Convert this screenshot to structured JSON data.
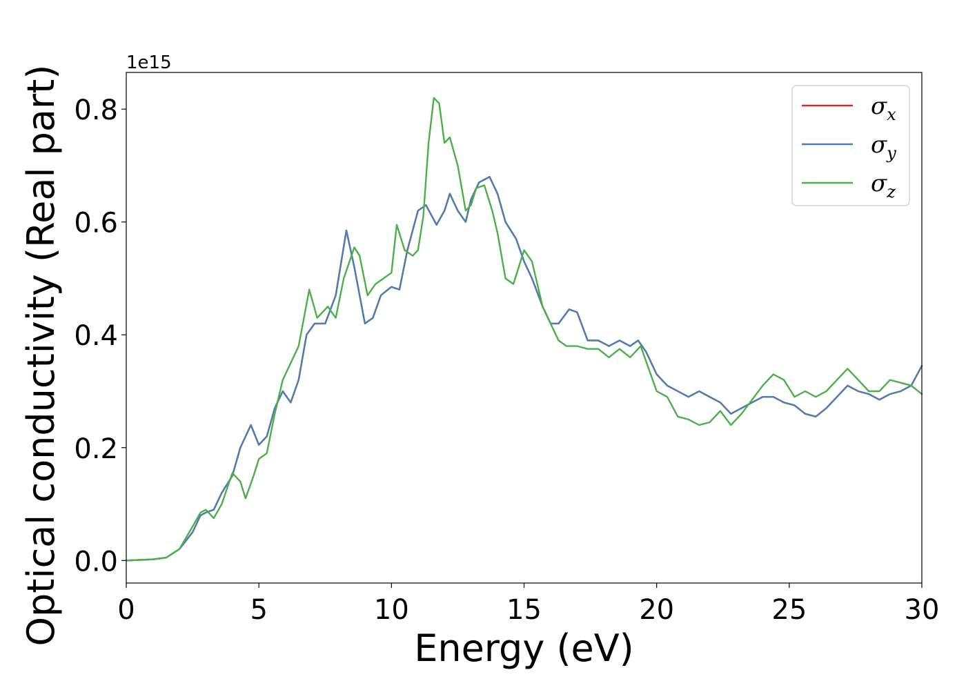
{
  "chart_data": {
    "type": "line",
    "xlabel": "Energy (eV)",
    "ylabel": "Optical conductivity (Real part)",
    "y_offset_label": "1e15",
    "xlim": [
      0,
      30
    ],
    "ylim": [
      -0.04,
      0.865
    ],
    "x_ticks": [
      0,
      5,
      10,
      15,
      20,
      25,
      30
    ],
    "y_ticks": [
      0.0,
      0.2,
      0.4,
      0.6,
      0.8
    ],
    "x_tick_labels": [
      "0",
      "5",
      "10",
      "15",
      "20",
      "25",
      "30"
    ],
    "y_tick_labels": [
      "0.0",
      "0.2",
      "0.4",
      "0.6",
      "0.8"
    ],
    "grid": false,
    "legend_position": "top-right",
    "series": [
      {
        "name": "σx",
        "symbol": "σ",
        "subscript": "x",
        "color": "#d62728",
        "points": [
          [
            0,
            0
          ],
          [
            1,
            0.002
          ],
          [
            1.5,
            0.005
          ],
          [
            2,
            0.02
          ],
          [
            2.5,
            0.05
          ],
          [
            2.8,
            0.08
          ],
          [
            3,
            0.085
          ],
          [
            3.3,
            0.09
          ],
          [
            3.6,
            0.12
          ],
          [
            4,
            0.15
          ],
          [
            4.3,
            0.2
          ],
          [
            4.7,
            0.24
          ],
          [
            5,
            0.205
          ],
          [
            5.3,
            0.22
          ],
          [
            5.6,
            0.27
          ],
          [
            5.9,
            0.3
          ],
          [
            6.2,
            0.28
          ],
          [
            6.5,
            0.32
          ],
          [
            6.8,
            0.4
          ],
          [
            7.1,
            0.42
          ],
          [
            7.5,
            0.42
          ],
          [
            7.9,
            0.47
          ],
          [
            8.3,
            0.585
          ],
          [
            8.6,
            0.52
          ],
          [
            9,
            0.42
          ],
          [
            9.3,
            0.43
          ],
          [
            9.6,
            0.47
          ],
          [
            10,
            0.485
          ],
          [
            10.3,
            0.48
          ],
          [
            10.6,
            0.55
          ],
          [
            11,
            0.62
          ],
          [
            11.3,
            0.63
          ],
          [
            11.7,
            0.595
          ],
          [
            12,
            0.62
          ],
          [
            12.2,
            0.65
          ],
          [
            12.5,
            0.62
          ],
          [
            12.8,
            0.6
          ],
          [
            13,
            0.64
          ],
          [
            13.3,
            0.67
          ],
          [
            13.7,
            0.68
          ],
          [
            14,
            0.65
          ],
          [
            14.3,
            0.6
          ],
          [
            14.7,
            0.57
          ],
          [
            15,
            0.53
          ],
          [
            15.3,
            0.5
          ],
          [
            15.7,
            0.45
          ],
          [
            16,
            0.42
          ],
          [
            16.3,
            0.42
          ],
          [
            16.7,
            0.445
          ],
          [
            17,
            0.44
          ],
          [
            17.4,
            0.39
          ],
          [
            17.8,
            0.39
          ],
          [
            18.2,
            0.38
          ],
          [
            18.6,
            0.39
          ],
          [
            19,
            0.38
          ],
          [
            19.3,
            0.39
          ],
          [
            19.6,
            0.37
          ],
          [
            20,
            0.33
          ],
          [
            20.4,
            0.31
          ],
          [
            20.8,
            0.3
          ],
          [
            21.2,
            0.29
          ],
          [
            21.6,
            0.3
          ],
          [
            22,
            0.29
          ],
          [
            22.4,
            0.28
          ],
          [
            22.8,
            0.26
          ],
          [
            23.2,
            0.27
          ],
          [
            23.6,
            0.28
          ],
          [
            24,
            0.29
          ],
          [
            24.4,
            0.29
          ],
          [
            24.8,
            0.28
          ],
          [
            25.2,
            0.275
          ],
          [
            25.6,
            0.26
          ],
          [
            26,
            0.255
          ],
          [
            26.4,
            0.27
          ],
          [
            26.8,
            0.29
          ],
          [
            27.2,
            0.31
          ],
          [
            27.6,
            0.3
          ],
          [
            28,
            0.295
          ],
          [
            28.4,
            0.285
          ],
          [
            28.8,
            0.295
          ],
          [
            29.2,
            0.3
          ],
          [
            29.6,
            0.31
          ],
          [
            30,
            0.345
          ]
        ]
      },
      {
        "name": "σy",
        "symbol": "σ",
        "subscript": "y",
        "color": "#4a7eb5",
        "points": [
          [
            0,
            0
          ],
          [
            1,
            0.002
          ],
          [
            1.5,
            0.005
          ],
          [
            2,
            0.02
          ],
          [
            2.5,
            0.05
          ],
          [
            2.8,
            0.08
          ],
          [
            3,
            0.085
          ],
          [
            3.3,
            0.09
          ],
          [
            3.6,
            0.12
          ],
          [
            4,
            0.15
          ],
          [
            4.3,
            0.2
          ],
          [
            4.7,
            0.24
          ],
          [
            5,
            0.205
          ],
          [
            5.3,
            0.22
          ],
          [
            5.6,
            0.27
          ],
          [
            5.9,
            0.3
          ],
          [
            6.2,
            0.28
          ],
          [
            6.5,
            0.32
          ],
          [
            6.8,
            0.4
          ],
          [
            7.1,
            0.42
          ],
          [
            7.5,
            0.42
          ],
          [
            7.9,
            0.47
          ],
          [
            8.3,
            0.585
          ],
          [
            8.6,
            0.52
          ],
          [
            9,
            0.42
          ],
          [
            9.3,
            0.43
          ],
          [
            9.6,
            0.47
          ],
          [
            10,
            0.485
          ],
          [
            10.3,
            0.48
          ],
          [
            10.6,
            0.55
          ],
          [
            11,
            0.62
          ],
          [
            11.3,
            0.63
          ],
          [
            11.7,
            0.595
          ],
          [
            12,
            0.62
          ],
          [
            12.2,
            0.65
          ],
          [
            12.5,
            0.62
          ],
          [
            12.8,
            0.6
          ],
          [
            13,
            0.64
          ],
          [
            13.3,
            0.67
          ],
          [
            13.7,
            0.68
          ],
          [
            14,
            0.65
          ],
          [
            14.3,
            0.6
          ],
          [
            14.7,
            0.57
          ],
          [
            15,
            0.53
          ],
          [
            15.3,
            0.5
          ],
          [
            15.7,
            0.45
          ],
          [
            16,
            0.42
          ],
          [
            16.3,
            0.42
          ],
          [
            16.7,
            0.445
          ],
          [
            17,
            0.44
          ],
          [
            17.4,
            0.39
          ],
          [
            17.8,
            0.39
          ],
          [
            18.2,
            0.38
          ],
          [
            18.6,
            0.39
          ],
          [
            19,
            0.38
          ],
          [
            19.3,
            0.39
          ],
          [
            19.6,
            0.37
          ],
          [
            20,
            0.33
          ],
          [
            20.4,
            0.31
          ],
          [
            20.8,
            0.3
          ],
          [
            21.2,
            0.29
          ],
          [
            21.6,
            0.3
          ],
          [
            22,
            0.29
          ],
          [
            22.4,
            0.28
          ],
          [
            22.8,
            0.26
          ],
          [
            23.2,
            0.27
          ],
          [
            23.6,
            0.28
          ],
          [
            24,
            0.29
          ],
          [
            24.4,
            0.29
          ],
          [
            24.8,
            0.28
          ],
          [
            25.2,
            0.275
          ],
          [
            25.6,
            0.26
          ],
          [
            26,
            0.255
          ],
          [
            26.4,
            0.27
          ],
          [
            26.8,
            0.29
          ],
          [
            27.2,
            0.31
          ],
          [
            27.6,
            0.3
          ],
          [
            28,
            0.295
          ],
          [
            28.4,
            0.285
          ],
          [
            28.8,
            0.295
          ],
          [
            29.2,
            0.3
          ],
          [
            29.6,
            0.31
          ],
          [
            30,
            0.345
          ]
        ]
      },
      {
        "name": "σz",
        "symbol": "σ",
        "subscript": "z",
        "color": "#4daf4a",
        "points": [
          [
            0,
            0
          ],
          [
            1,
            0.002
          ],
          [
            1.5,
            0.005
          ],
          [
            2,
            0.02
          ],
          [
            2.5,
            0.06
          ],
          [
            2.8,
            0.085
          ],
          [
            3,
            0.09
          ],
          [
            3.3,
            0.075
          ],
          [
            3.6,
            0.1
          ],
          [
            4,
            0.155
          ],
          [
            4.3,
            0.14
          ],
          [
            4.5,
            0.11
          ],
          [
            4.8,
            0.15
          ],
          [
            5,
            0.18
          ],
          [
            5.3,
            0.19
          ],
          [
            5.6,
            0.26
          ],
          [
            5.9,
            0.32
          ],
          [
            6.2,
            0.35
          ],
          [
            6.5,
            0.38
          ],
          [
            6.9,
            0.48
          ],
          [
            7.2,
            0.43
          ],
          [
            7.6,
            0.45
          ],
          [
            7.9,
            0.43
          ],
          [
            8.2,
            0.5
          ],
          [
            8.6,
            0.555
          ],
          [
            8.8,
            0.54
          ],
          [
            9.1,
            0.47
          ],
          [
            9.4,
            0.49
          ],
          [
            9.7,
            0.5
          ],
          [
            10,
            0.51
          ],
          [
            10.2,
            0.595
          ],
          [
            10.5,
            0.55
          ],
          [
            10.8,
            0.54
          ],
          [
            11,
            0.55
          ],
          [
            11.2,
            0.61
          ],
          [
            11.4,
            0.74
          ],
          [
            11.6,
            0.82
          ],
          [
            11.8,
            0.81
          ],
          [
            12,
            0.74
          ],
          [
            12.2,
            0.75
          ],
          [
            12.5,
            0.7
          ],
          [
            12.8,
            0.62
          ],
          [
            13,
            0.63
          ],
          [
            13.2,
            0.66
          ],
          [
            13.5,
            0.665
          ],
          [
            13.8,
            0.62
          ],
          [
            14,
            0.58
          ],
          [
            14.3,
            0.5
          ],
          [
            14.6,
            0.49
          ],
          [
            15,
            0.55
          ],
          [
            15.3,
            0.53
          ],
          [
            15.7,
            0.45
          ],
          [
            16,
            0.42
          ],
          [
            16.3,
            0.39
          ],
          [
            16.6,
            0.38
          ],
          [
            17,
            0.38
          ],
          [
            17.4,
            0.375
          ],
          [
            17.8,
            0.375
          ],
          [
            18.2,
            0.36
          ],
          [
            18.6,
            0.375
          ],
          [
            19,
            0.36
          ],
          [
            19.4,
            0.38
          ],
          [
            19.7,
            0.34
          ],
          [
            20,
            0.3
          ],
          [
            20.4,
            0.29
          ],
          [
            20.8,
            0.255
          ],
          [
            21.2,
            0.25
          ],
          [
            21.6,
            0.24
          ],
          [
            22,
            0.245
          ],
          [
            22.4,
            0.265
          ],
          [
            22.8,
            0.24
          ],
          [
            23.2,
            0.26
          ],
          [
            23.6,
            0.285
          ],
          [
            24,
            0.31
          ],
          [
            24.4,
            0.33
          ],
          [
            24.8,
            0.32
          ],
          [
            25.2,
            0.29
          ],
          [
            25.6,
            0.3
          ],
          [
            26,
            0.29
          ],
          [
            26.4,
            0.3
          ],
          [
            26.8,
            0.32
          ],
          [
            27.2,
            0.34
          ],
          [
            27.6,
            0.32
          ],
          [
            28,
            0.3
          ],
          [
            28.4,
            0.3
          ],
          [
            28.8,
            0.32
          ],
          [
            29.2,
            0.315
          ],
          [
            29.6,
            0.31
          ],
          [
            30,
            0.295
          ]
        ]
      }
    ]
  }
}
